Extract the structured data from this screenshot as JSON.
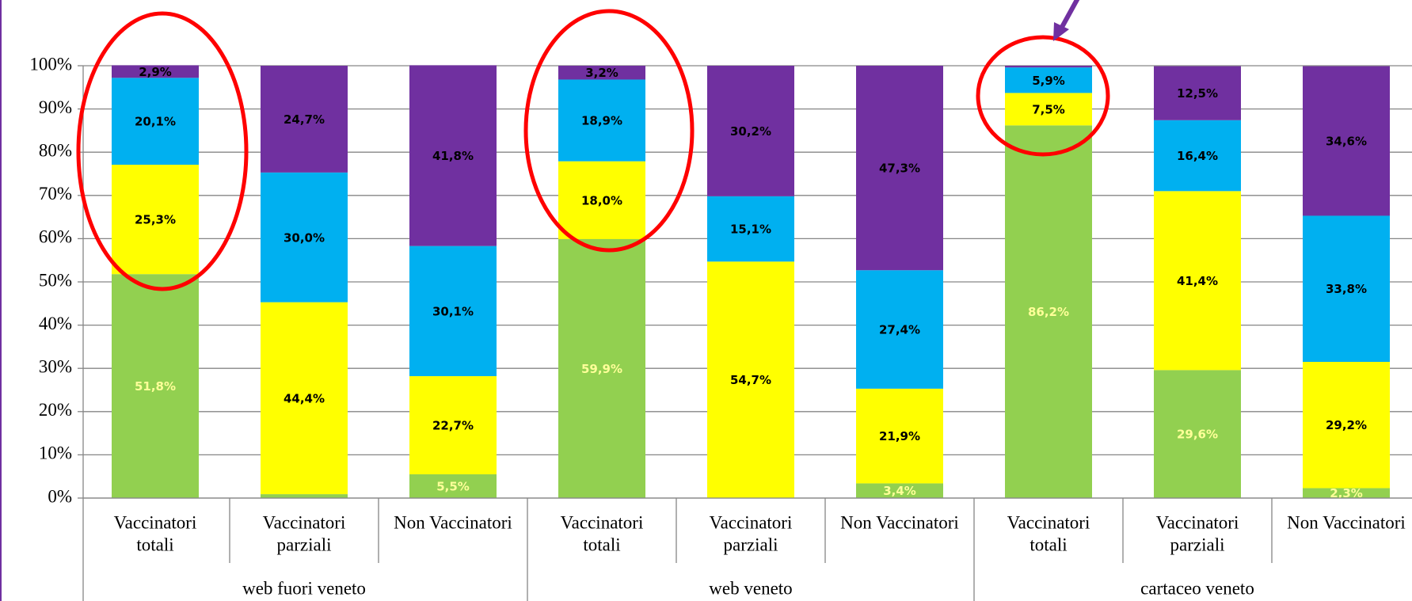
{
  "chart_data": {
    "type": "stacked_bar",
    "categories": [
      [
        "Vaccinatori",
        "totali"
      ],
      [
        "Vaccinatori",
        "parziali"
      ],
      [
        "Non Vaccinatori"
      ],
      [
        "Vaccinatori",
        "totali"
      ],
      [
        "Vaccinatori",
        "parziali"
      ],
      [
        "Non Vaccinatori"
      ],
      [
        "Vaccinatori",
        "totali"
      ],
      [
        "Vaccinatori",
        "parziali"
      ],
      [
        "Non Vaccinatori"
      ]
    ],
    "groups": [
      "web fuori veneto",
      "web veneto",
      "cartaceo veneto"
    ],
    "series": [
      {
        "color": "#92d050",
        "label_color": "#ffff99",
        "values": [
          51.8,
          0.9,
          5.5,
          59.9,
          0,
          3.4,
          86.2,
          29.6,
          2.3
        ],
        "value_labels": [
          "51,8%",
          null,
          "5,5%",
          "59,9%",
          null,
          "3,4%",
          "86,2%",
          "29,6%",
          "2,3%"
        ]
      },
      {
        "color": "#ffff00",
        "label_color": "#000000",
        "values": [
          25.3,
          44.4,
          22.7,
          18.0,
          54.7,
          21.9,
          7.5,
          41.4,
          29.2
        ],
        "value_labels": [
          "25,3%",
          "44,4%",
          "22,7%",
          "18,0%",
          "54,7%",
          "21,9%",
          "7,5%",
          "41,4%",
          "29,2%"
        ]
      },
      {
        "color": "#00b0f0",
        "label_color": "#000000",
        "values": [
          20.1,
          30.0,
          30.1,
          18.9,
          15.1,
          27.4,
          5.9,
          16.4,
          33.8
        ],
        "value_labels": [
          "20,1%",
          "30,0%",
          "30,1%",
          "18,9%",
          "15,1%",
          "27,4%",
          "5,9%",
          "16,4%",
          "33,8%"
        ]
      },
      {
        "color": "#7030a0",
        "label_color": "#000000",
        "values": [
          2.9,
          24.7,
          41.8,
          3.2,
          30.2,
          47.3,
          0.4,
          12.5,
          34.6
        ],
        "value_labels": [
          "2,9%",
          "24,7%",
          "41,8%",
          "3,2%",
          "30,2%",
          "47,3%",
          null,
          "12,5%",
          "34,6%"
        ]
      }
    ],
    "ylim": [
      0,
      100
    ],
    "yticks": [
      {
        "value": 0,
        "label": "0%"
      },
      {
        "value": 10,
        "label": "10%"
      },
      {
        "value": 20,
        "label": "20%"
      },
      {
        "value": 30,
        "label": "30%"
      },
      {
        "value": 40,
        "label": "40%"
      },
      {
        "value": 50,
        "label": "50%"
      },
      {
        "value": 60,
        "label": "60%"
      },
      {
        "value": 70,
        "label": "70%"
      },
      {
        "value": 80,
        "label": "80%"
      },
      {
        "value": 90,
        "label": "90%"
      },
      {
        "value": 100,
        "label": "100%"
      }
    ],
    "grid": true
  }
}
